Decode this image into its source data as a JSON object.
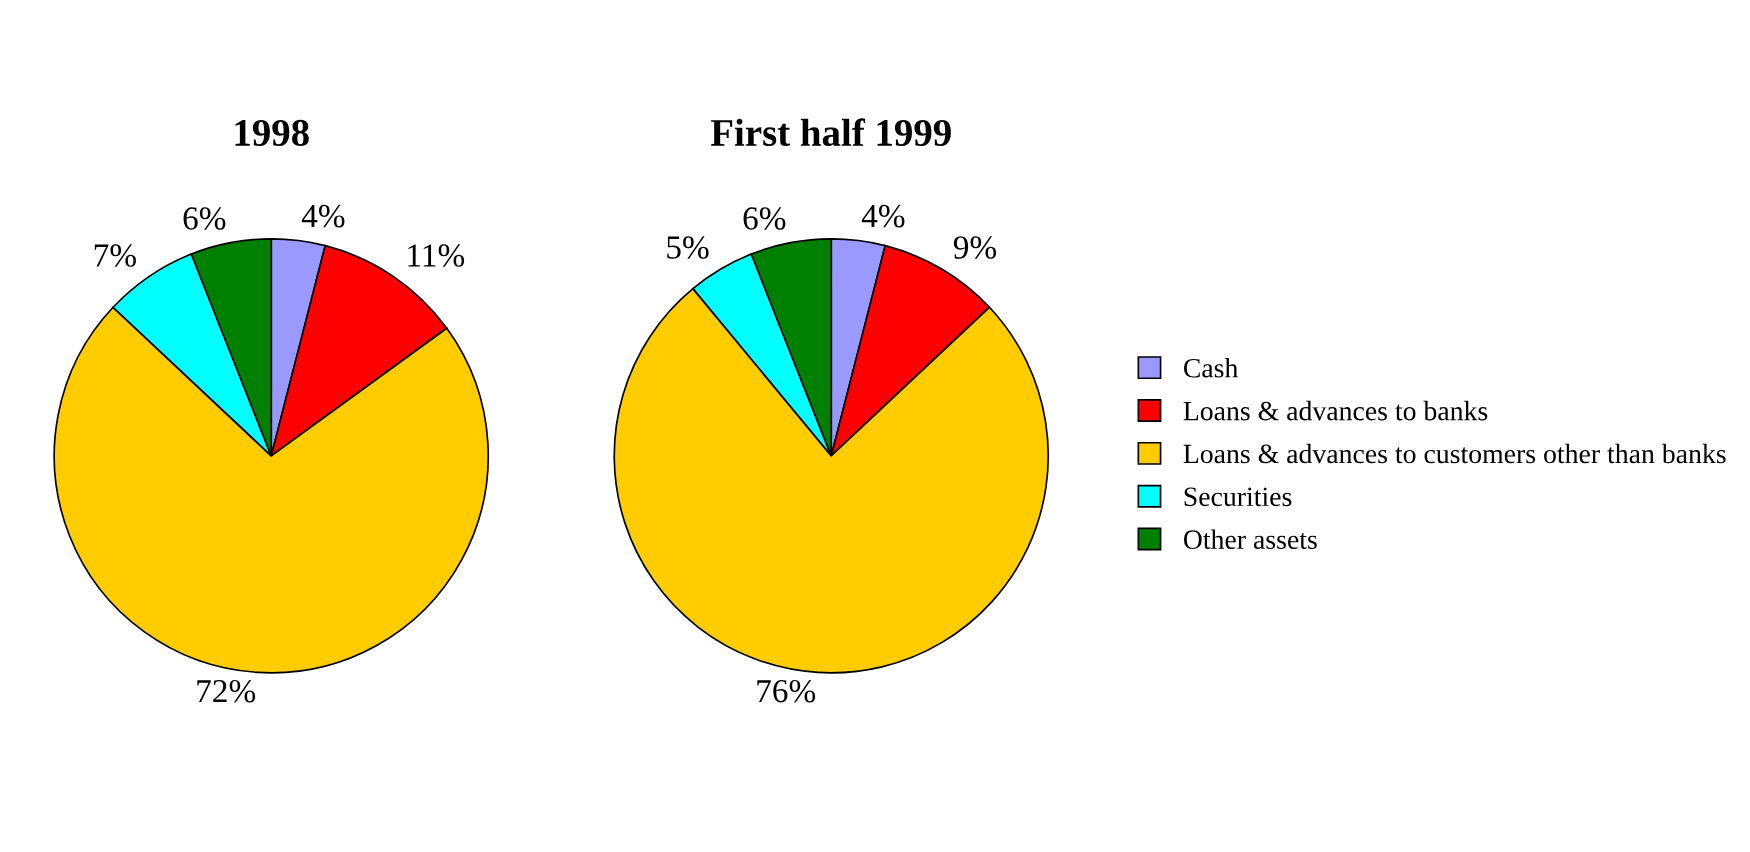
{
  "chart_data": [
    {
      "type": "pie",
      "title": "1998",
      "values": [
        4,
        11,
        72,
        7,
        6
      ],
      "value_labels": [
        "4%",
        "11%",
        "72%",
        "7%",
        "6%"
      ],
      "colors": [
        "#9999ff",
        "#ff0000",
        "#ffcc00",
        "#00ffff",
        "#008000"
      ]
    },
    {
      "type": "pie",
      "title": "First half 1999",
      "categories": [
        "Cash",
        "Loans & advances to banks",
        "Loans & advances to customers other than banks",
        "Securities",
        "Other assets"
      ],
      "values": [
        4,
        9,
        76,
        5,
        6
      ],
      "value_labels": [
        "4%",
        "9%",
        "76%",
        "5%",
        "6%"
      ],
      "colors": [
        "#9999ff",
        "#ff0000",
        "#ffcc00",
        "#00ffff",
        "#008000"
      ],
      "legend": "right"
    }
  ]
}
